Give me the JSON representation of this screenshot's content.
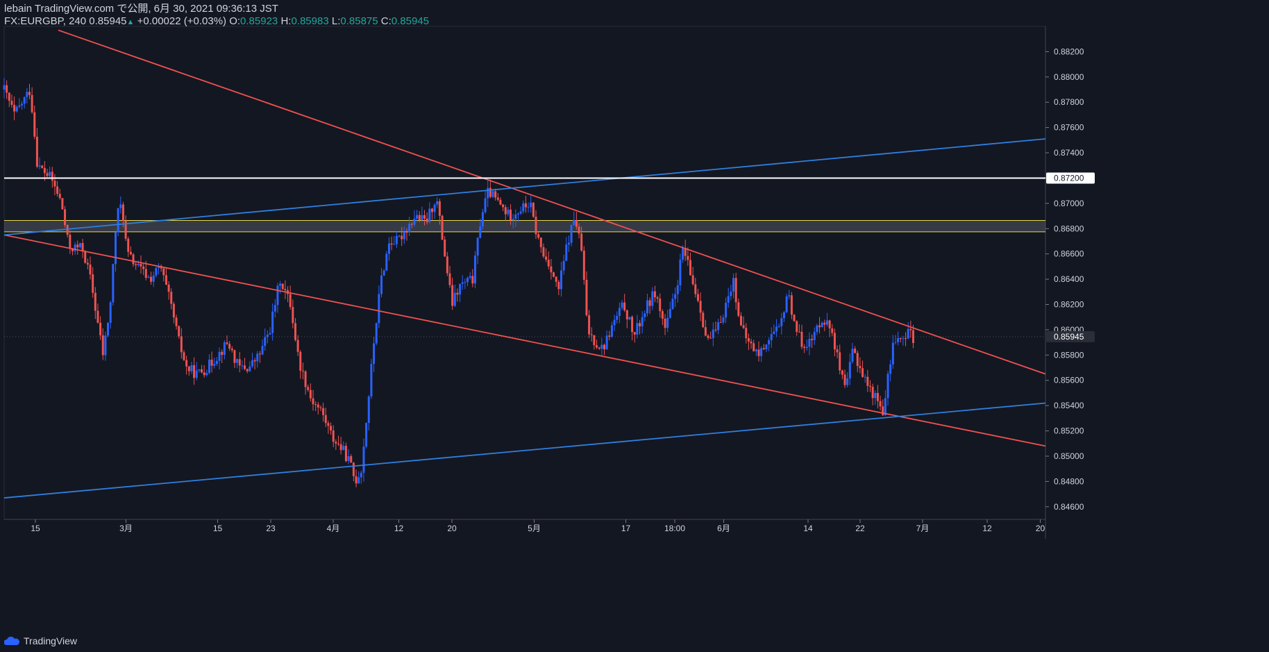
{
  "header": {
    "published_line": "lebain TradingView.com で公開, 6月 30, 2021 09:36:13 JST",
    "symbol": "FX:EURGBP, 240",
    "last": "0.85945",
    "change": "+0.00022 (+0.03%)",
    "o_label": "O:",
    "o_val": "0.85923",
    "h_label": "H:",
    "h_val": "0.85983",
    "l_label": "L:",
    "l_val": "0.85875",
    "c_label": "C:",
    "c_val": "0.85945"
  },
  "footer": {
    "brand": "TradingView"
  },
  "colors": {
    "background": "#131722",
    "up": "#2962ff",
    "down": "#ef5350",
    "trend_red": "#f0524f",
    "trend_blue": "#2f7fe0",
    "level_white": "#ffffff",
    "zone_yellow": "#e7d94b",
    "text": "#d1d4dc",
    "green": "#26a69a"
  },
  "chart_data": {
    "type": "candlestick",
    "symbol": "FX:EURGBP",
    "interval": "240",
    "ylim": [
      0.845,
      0.884
    ],
    "y_ticks": [
      "0.88200",
      "0.88000",
      "0.87800",
      "0.87600",
      "0.87400",
      "0.87200",
      "0.87000",
      "0.86800",
      "0.86600",
      "0.86400",
      "0.86200",
      "0.86000",
      "0.85800",
      "0.85600",
      "0.85400",
      "0.85200",
      "0.85000",
      "0.84800",
      "0.84600"
    ],
    "x_range": [
      0,
      100
    ],
    "x_ticks": [
      {
        "x": 3.0,
        "label": "15"
      },
      {
        "x": 11.7,
        "label": "3月"
      },
      {
        "x": 20.5,
        "label": "15"
      },
      {
        "x": 25.6,
        "label": "23"
      },
      {
        "x": 31.6,
        "label": "4月"
      },
      {
        "x": 37.9,
        "label": "12"
      },
      {
        "x": 43.0,
        "label": "20"
      },
      {
        "x": 50.9,
        "label": "5月"
      },
      {
        "x": 59.7,
        "label": "17"
      },
      {
        "x": 64.4,
        "label": "18:00"
      },
      {
        "x": 69.1,
        "label": "6月"
      },
      {
        "x": 77.2,
        "label": "14"
      },
      {
        "x": 82.2,
        "label": "22"
      },
      {
        "x": 88.2,
        "label": "7月"
      },
      {
        "x": 94.4,
        "label": "12"
      },
      {
        "x": 99.5,
        "label": "20"
      }
    ],
    "price_path": [
      [
        0.0,
        0.879
      ],
      [
        1.0,
        0.877
      ],
      [
        2.5,
        0.879
      ],
      [
        3.2,
        0.873
      ],
      [
        4.5,
        0.872
      ],
      [
        5.5,
        0.87
      ],
      [
        6.2,
        0.8665
      ],
      [
        7.5,
        0.8665
      ],
      [
        8.3,
        0.864
      ],
      [
        9.5,
        0.858
      ],
      [
        10.2,
        0.862
      ],
      [
        10.8,
        0.869
      ],
      [
        11.3,
        0.87
      ],
      [
        11.8,
        0.866
      ],
      [
        12.8,
        0.865
      ],
      [
        14.0,
        0.864
      ],
      [
        15.0,
        0.865
      ],
      [
        16.0,
        0.862
      ],
      [
        16.8,
        0.859
      ],
      [
        17.5,
        0.857
      ],
      [
        18.5,
        0.8565
      ],
      [
        19.5,
        0.857
      ],
      [
        20.5,
        0.858
      ],
      [
        21.5,
        0.859
      ],
      [
        22.5,
        0.857
      ],
      [
        23.5,
        0.857
      ],
      [
        24.5,
        0.858
      ],
      [
        25.5,
        0.86
      ],
      [
        26.5,
        0.864
      ],
      [
        27.5,
        0.862
      ],
      [
        28.3,
        0.8575
      ],
      [
        29.5,
        0.8545
      ],
      [
        30.5,
        0.8535
      ],
      [
        31.5,
        0.8515
      ],
      [
        32.5,
        0.8505
      ],
      [
        33.2,
        0.8495
      ],
      [
        33.7,
        0.848
      ],
      [
        34.3,
        0.849
      ],
      [
        34.8,
        0.853
      ],
      [
        35.5,
        0.859
      ],
      [
        36.2,
        0.864
      ],
      [
        37.0,
        0.867
      ],
      [
        37.8,
        0.867
      ],
      [
        38.6,
        0.868
      ],
      [
        39.5,
        0.869
      ],
      [
        40.5,
        0.8685
      ],
      [
        41.5,
        0.8705
      ],
      [
        42.3,
        0.866
      ],
      [
        43.0,
        0.862
      ],
      [
        43.8,
        0.8635
      ],
      [
        45.0,
        0.864
      ],
      [
        45.8,
        0.869
      ],
      [
        46.5,
        0.871
      ],
      [
        47.5,
        0.87
      ],
      [
        48.5,
        0.869
      ],
      [
        49.5,
        0.8695
      ],
      [
        50.5,
        0.87
      ],
      [
        51.0,
        0.868
      ],
      [
        51.7,
        0.866
      ],
      [
        52.5,
        0.865
      ],
      [
        53.2,
        0.863
      ],
      [
        54.0,
        0.8665
      ],
      [
        54.8,
        0.869
      ],
      [
        55.5,
        0.866
      ],
      [
        56.0,
        0.86
      ],
      [
        56.8,
        0.859
      ],
      [
        57.5,
        0.8585
      ],
      [
        58.5,
        0.8605
      ],
      [
        59.5,
        0.862
      ],
      [
        60.5,
        0.8595
      ],
      [
        61.5,
        0.8615
      ],
      [
        62.5,
        0.863
      ],
      [
        63.5,
        0.86
      ],
      [
        64.5,
        0.863
      ],
      [
        65.2,
        0.8665
      ],
      [
        66.0,
        0.864
      ],
      [
        66.8,
        0.862
      ],
      [
        67.5,
        0.859
      ],
      [
        68.5,
        0.86
      ],
      [
        69.5,
        0.8625
      ],
      [
        70.0,
        0.864
      ],
      [
        70.8,
        0.86
      ],
      [
        71.5,
        0.859
      ],
      [
        72.5,
        0.858
      ],
      [
        73.5,
        0.8595
      ],
      [
        74.5,
        0.86
      ],
      [
        75.2,
        0.863
      ],
      [
        75.8,
        0.861
      ],
      [
        76.5,
        0.859
      ],
      [
        77.5,
        0.859
      ],
      [
        78.5,
        0.861
      ],
      [
        79.5,
        0.86
      ],
      [
        80.2,
        0.857
      ],
      [
        80.8,
        0.855
      ],
      [
        81.5,
        0.8585
      ],
      [
        82.2,
        0.857
      ],
      [
        83.0,
        0.8555
      ],
      [
        83.8,
        0.8545
      ],
      [
        84.5,
        0.8535
      ],
      [
        85.0,
        0.857
      ],
      [
        85.5,
        0.8595
      ],
      [
        86.3,
        0.859
      ],
      [
        87.0,
        0.86
      ],
      [
        87.3,
        0.8594
      ]
    ],
    "trend_lines": [
      {
        "name": "red-upper-trendline",
        "color": "red",
        "from": [
          5.2,
          0.8837
        ],
        "to": [
          100,
          0.8565
        ]
      },
      {
        "name": "red-lower-trendline",
        "color": "red",
        "from": [
          0,
          0.8675
        ],
        "to": [
          100,
          0.8508
        ]
      },
      {
        "name": "blue-upper-trendline",
        "color": "blue",
        "from": [
          0,
          0.8675
        ],
        "to": [
          100,
          0.8751
        ]
      },
      {
        "name": "blue-lower-trendline",
        "color": "blue",
        "from": [
          0,
          0.8467
        ],
        "to": [
          100,
          0.8542
        ]
      }
    ],
    "horizontal_levels": [
      {
        "name": "white-resistance-line",
        "price": 0.872,
        "label": "0.87200"
      }
    ],
    "zone": {
      "name": "yellow-supply-zone",
      "top": 0.86865,
      "bottom": 0.86775
    },
    "last_price": {
      "price": 0.85945,
      "label": "0.85945"
    }
  }
}
